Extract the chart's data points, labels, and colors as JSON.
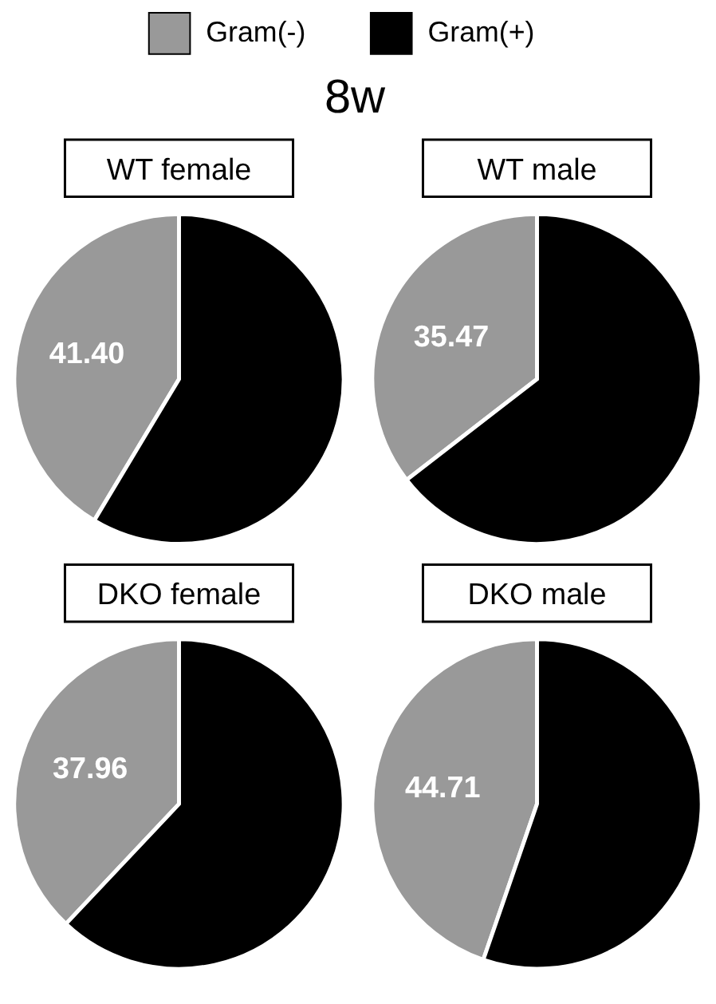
{
  "chart_data": [
    {
      "type": "pie",
      "title": "WT female",
      "annotations": [
        "8w"
      ],
      "legend": "top",
      "categories": [
        "Gram(-)",
        "Gram(+)"
      ],
      "values": [
        41.4,
        58.6
      ],
      "colors": [
        "#999999",
        "#000000"
      ],
      "value_labels": [
        "41.40",
        null
      ]
    },
    {
      "type": "pie",
      "title": "WT male",
      "categories": [
        null,
        null
      ],
      "values": [
        35.47,
        64.53
      ],
      "colors": [
        "#999999",
        "#000000"
      ],
      "value_labels": [
        "35.47",
        null
      ]
    },
    {
      "type": "pie",
      "title": "DKO female",
      "categories": [
        null,
        null
      ],
      "values": [
        37.96,
        62.04
      ],
      "colors": [
        "#999999",
        "#000000"
      ],
      "value_labels": [
        "37.96",
        null
      ]
    },
    {
      "type": "pie",
      "title": "DKO male",
      "categories": [
        null,
        null
      ],
      "values": [
        44.71,
        55.29
      ],
      "colors": [
        "#999999",
        "#000000"
      ],
      "value_labels": [
        "44.71",
        null
      ]
    }
  ]
}
